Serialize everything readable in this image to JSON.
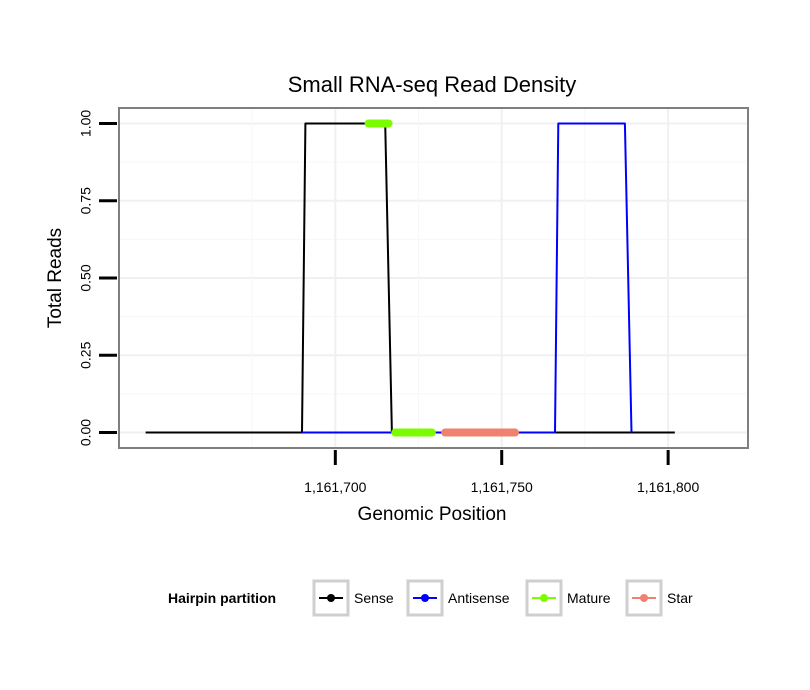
{
  "chart_data": {
    "type": "line",
    "title": "Small RNA-seq Read Density",
    "xlabel": "Genomic Position",
    "ylabel": "Total Reads",
    "xlim": [
      1161635,
      1161824
    ],
    "ylim": [
      -0.05,
      1.05
    ],
    "x_ticks": [
      1161700,
      1161750,
      1161800
    ],
    "x_tick_labels": [
      "1,161,700",
      "1,161,750",
      "1,161,800"
    ],
    "y_ticks": [
      0,
      0.25,
      0.5,
      0.75,
      1.0
    ],
    "y_tick_labels": [
      "0.00",
      "0.25",
      "0.50",
      "0.75",
      "1.00"
    ],
    "grid": true,
    "legend": {
      "title": "Hairpin partition",
      "position": "bottom",
      "entries": [
        "Sense",
        "Antisense",
        "Mature",
        "Star"
      ]
    },
    "series": [
      {
        "name": "Sense",
        "color": "#000000",
        "style": "line",
        "x": [
          1161643,
          1161690,
          1161691,
          1161715,
          1161717,
          1161802
        ],
        "y": [
          0,
          0,
          1,
          1,
          0,
          0
        ]
      },
      {
        "name": "Antisense",
        "color": "#0000ff",
        "style": "line",
        "x": [
          1161690,
          1161766,
          1161767,
          1161787,
          1161789
        ],
        "y": [
          0,
          0,
          1,
          1,
          0
        ]
      },
      {
        "name": "Mature",
        "color": "#7cfc00",
        "style": "thick",
        "segments": [
          {
            "x": [
              1161710,
              1161716
            ],
            "y": [
              1,
              1
            ]
          },
          {
            "x": [
              1161718,
              1161729
            ],
            "y": [
              0,
              0
            ]
          }
        ]
      },
      {
        "name": "Star",
        "color": "#f08070",
        "style": "thick",
        "segments": [
          {
            "x": [
              1161733,
              1161754
            ],
            "y": [
              0,
              0
            ]
          }
        ]
      }
    ]
  }
}
